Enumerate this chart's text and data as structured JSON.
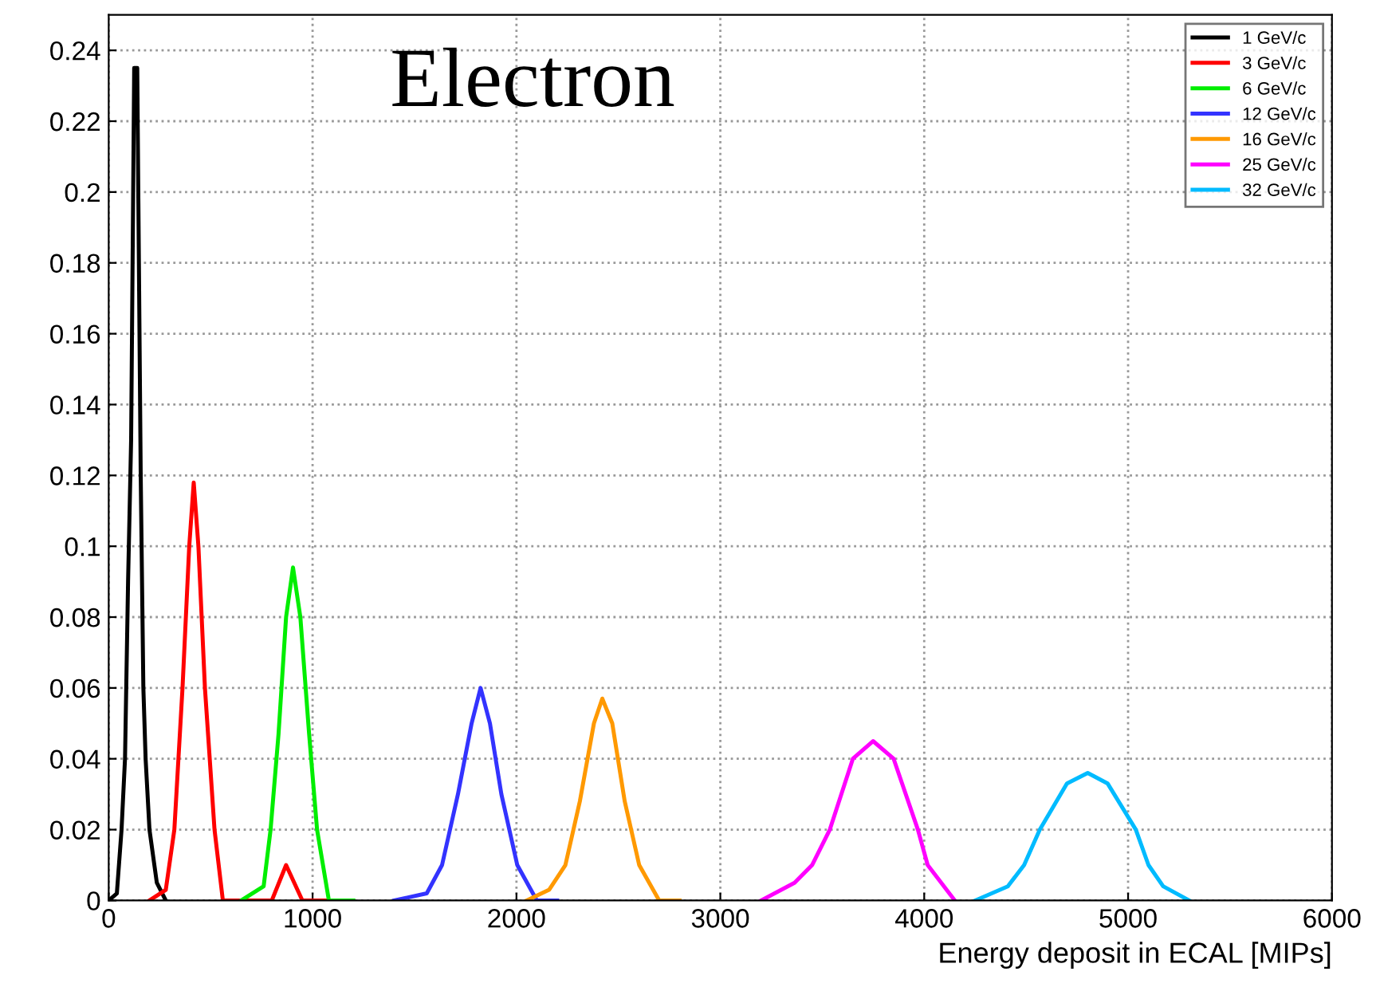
{
  "chart_data": {
    "type": "line",
    "title": "Electron",
    "xlabel": "Energy deposit in ECAL [MIPs]",
    "xlim": [
      0,
      6000
    ],
    "xticks": [
      0,
      1000,
      2000,
      3000,
      4000,
      5000,
      6000
    ],
    "ylim": [
      0,
      0.25
    ],
    "yticks": [
      0,
      0.02,
      0.04,
      0.06,
      0.08,
      0.1,
      0.12,
      0.14,
      0.16,
      0.18,
      0.2,
      0.22,
      0.24
    ],
    "grid": true,
    "legend": "top right",
    "marker": "none",
    "line_style": "solid",
    "series": [
      {
        "name": "1 GeV/c",
        "color": "#000000",
        "x": [
          0,
          40,
          63,
          80,
          95,
          110,
          125,
          140,
          157,
          170,
          181,
          200,
          236,
          280
        ],
        "values": [
          0,
          0.002,
          0.02,
          0.04,
          0.09,
          0.13,
          0.235,
          0.235,
          0.12,
          0.06,
          0.04,
          0.02,
          0.005,
          0
        ]
      },
      {
        "name": "3 GeV/c",
        "color": "#ff0000",
        "x": [
          200,
          280,
          322,
          362,
          395,
          417,
          440,
          472,
          519,
          560,
          800,
          870,
          950,
          1100
        ],
        "values": [
          0,
          0.003,
          0.02,
          0.06,
          0.1,
          0.118,
          0.1,
          0.06,
          0.02,
          0,
          0,
          0.01,
          0,
          0
        ]
      },
      {
        "name": "6 GeV/c",
        "color": "#00ee00",
        "x": [
          650,
          760,
          794,
          833,
          870,
          904,
          940,
          983,
          1022,
          1080,
          1200
        ],
        "values": [
          0,
          0.004,
          0.02,
          0.047,
          0.08,
          0.094,
          0.08,
          0.047,
          0.02,
          0,
          0
        ]
      },
      {
        "name": "12 GeV/c",
        "color": "#3333ff",
        "x": [
          1400,
          1560,
          1635,
          1713,
          1780,
          1824,
          1870,
          1926,
          2004,
          2100,
          2200
        ],
        "values": [
          0,
          0.002,
          0.01,
          0.03,
          0.05,
          0.06,
          0.05,
          0.03,
          0.01,
          0,
          0
        ]
      },
      {
        "name": "16 GeV/c",
        "color": "#ff9900",
        "x": [
          2050,
          2160,
          2240,
          2311,
          2380,
          2421,
          2470,
          2531,
          2602,
          2700,
          2800
        ],
        "values": [
          0,
          0.003,
          0.01,
          0.028,
          0.05,
          0.057,
          0.05,
          0.028,
          0.01,
          0,
          0
        ]
      },
      {
        "name": "25 GeV/c",
        "color": "#ff00ff",
        "x": [
          3200,
          3364,
          3450,
          3537,
          3650,
          3749,
          3850,
          3969,
          4017,
          4150
        ],
        "values": [
          0,
          0.005,
          0.01,
          0.02,
          0.04,
          0.045,
          0.04,
          0.02,
          0.01,
          0
        ]
      },
      {
        "name": "32 GeV/c",
        "color": "#00bbff",
        "x": [
          4250,
          4410,
          4490,
          4567,
          4700,
          4802,
          4900,
          5038,
          5100,
          5172,
          5300
        ],
        "values": [
          0,
          0.004,
          0.01,
          0.02,
          0.033,
          0.036,
          0.033,
          0.02,
          0.01,
          0.004,
          0
        ]
      }
    ]
  }
}
